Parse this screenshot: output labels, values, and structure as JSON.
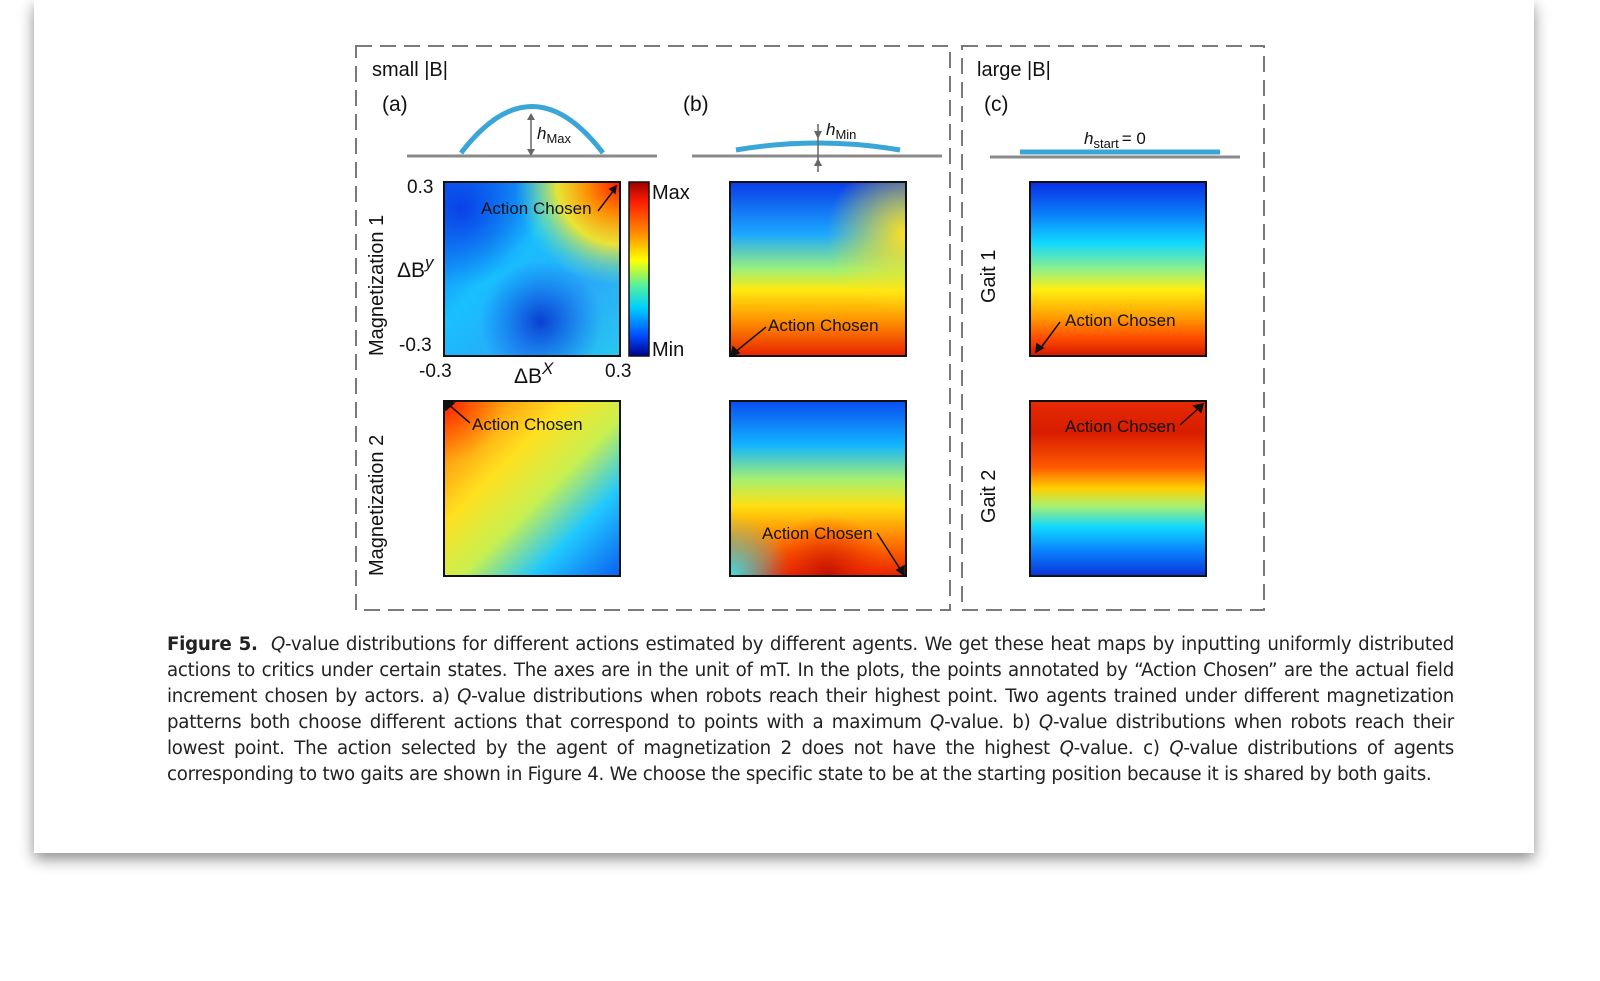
{
  "figure": {
    "panel_left_title": "small |B|",
    "panel_right_title": "large |B|",
    "labels": {
      "a": "(a)",
      "b": "(b)",
      "c": "(c)"
    },
    "heights": {
      "h_max": "Max",
      "h_min": "Min",
      "h_start_sub": "start",
      "h_start_rest": "= 0"
    },
    "row_labels": {
      "mag1": "Magnetization 1",
      "mag2": "Magnetization 2",
      "gait1": "Gait 1",
      "gait2": "Gait 2"
    },
    "axes": {
      "y_top": "0.3",
      "y_bottom": "-0.3",
      "x_left": "-0.3",
      "x_right": "0.3",
      "x_label": "X",
      "y_label": "y"
    },
    "colorbar": {
      "max": "Max",
      "min": "Min"
    },
    "annotation": "Action Chosen"
  },
  "caption": {
    "label": "Figure 5.",
    "q": "Q",
    "t1": "-value distributions for different actions estimated by different agents. We get these heat maps by inputting uniformly distributed actions to critics under certain states. The axes are in the unit of mT. In the plots, the points annotated by “Action Chosen” are the actual field increment chosen by actors. a) ",
    "t2": "-value distributions when robots reach their highest point. Two agents trained under different magnetization patterns both choose different actions that correspond to points with a maximum ",
    "t3": "-value. b) ",
    "t4": "-value distributions when robots reach their lowest point. The action selected by the agent of magnetization 2 does not have the highest ",
    "t5": "-value. c) ",
    "t6": "-value distributions of agents corresponding to two gaits are shown in Figure 4. We choose the specific state to be at the starting position because it is shared by both gaits."
  },
  "colors": {
    "border_dash": "#7a7a7a",
    "robot": "#3aa6d8",
    "ground": "#8a8a8a"
  }
}
